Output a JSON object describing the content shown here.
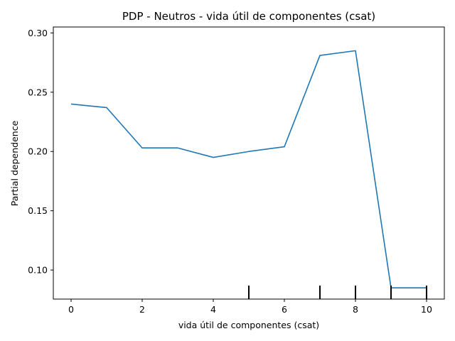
{
  "chart_data": {
    "type": "line",
    "title": "PDP - Neutros - vida útil de componentes (csat)",
    "xlabel": "vida útil de componentes (csat)",
    "ylabel": "Partial dependence",
    "xlim": [
      -0.5,
      10.5
    ],
    "ylim": [
      0.0755,
      0.305
    ],
    "xticks": [
      0,
      2,
      4,
      6,
      8,
      10
    ],
    "xtick_labels": [
      "0",
      "2",
      "4",
      "6",
      "8",
      "10"
    ],
    "yticks": [
      0.1,
      0.15,
      0.2,
      0.25,
      0.3
    ],
    "ytick_labels": [
      "0.10",
      "0.15",
      "0.20",
      "0.25",
      "0.30"
    ],
    "grid": false,
    "series": [
      {
        "color": "#1f77b4",
        "x": [
          0,
          1,
          2,
          3,
          4,
          5,
          6,
          7,
          8,
          9,
          10
        ],
        "values": [
          0.24,
          0.237,
          0.203,
          0.203,
          0.195,
          0.2,
          0.204,
          0.281,
          0.285,
          0.085,
          0.085
        ]
      }
    ],
    "rug": {
      "color": "#000000",
      "x": [
        5,
        7,
        8,
        9,
        10
      ]
    }
  }
}
